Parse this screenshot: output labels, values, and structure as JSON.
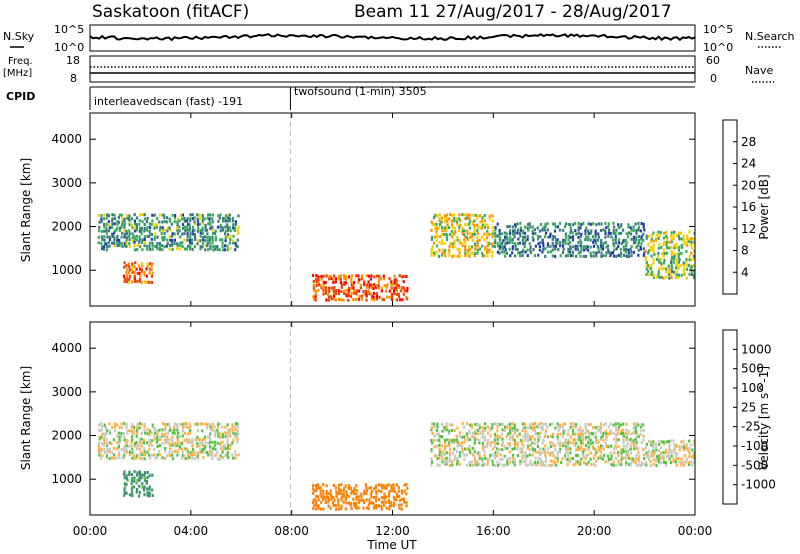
{
  "header": {
    "title": "Saskatoon (fitACF)",
    "beam_info": "Beam 11 27/Aug/2017 - 28/Aug/2017"
  },
  "top_panels": {
    "nsky_label": "N.Sky",
    "nsky_ticks": [
      "10^5",
      "10^0"
    ],
    "nsearch_label": "N.Search",
    "nsearch_ticks": [
      "10^5",
      "10^0"
    ],
    "freq_label": "Freq.",
    "freq_unit": "[MHz]",
    "freq_ticks": [
      "18",
      "8"
    ],
    "nave_label": "Nave",
    "nave_ticks": [
      "60",
      "0"
    ],
    "cpid_label": "CPID",
    "cpid_segments": [
      {
        "label": "interleavedscan (fast) -191",
        "start_hour": 0,
        "end_hour": 7.95
      },
      {
        "label": "twofsound (1-min) 3505",
        "start_hour": 7.95,
        "end_hour": 24
      }
    ]
  },
  "chart_data": [
    {
      "type": "heatmap",
      "title": "",
      "xlabel": "Time UT",
      "ylabel": "Slant Range [km]",
      "xlim": [
        0,
        24
      ],
      "ylim": [
        180,
        4600
      ],
      "x_ticks": [
        "00:00",
        "04:00",
        "08:00",
        "12:00",
        "16:00",
        "20:00",
        "00:00"
      ],
      "y_ticks": [
        "1000",
        "2000",
        "3000",
        "4000"
      ],
      "colorbar": {
        "label": "Power [dB]",
        "ticks": [
          "28",
          "24",
          "20",
          "16",
          "12",
          "8",
          "4"
        ],
        "colors": [
          "#0000ff",
          "#1f3f9f",
          "#3a7a7a",
          "#38a85a",
          "#f0d000",
          "#ff9000",
          "#f04000",
          "#ff0000"
        ]
      },
      "regions": [
        {
          "t0": 0.3,
          "t1": 5.9,
          "r0": 1450,
          "r1": 2300,
          "value": 12
        },
        {
          "t0": 1.3,
          "t1": 2.5,
          "r0": 700,
          "r1": 1200,
          "value": 24
        },
        {
          "t0": 8.8,
          "t1": 12.6,
          "r0": 300,
          "r1": 900,
          "value": 26
        },
        {
          "t0": 13.5,
          "t1": 16.0,
          "r0": 1300,
          "r1": 2300,
          "value": 18
        },
        {
          "t0": 16.0,
          "t1": 22.0,
          "r0": 1300,
          "r1": 2100,
          "value": 10
        },
        {
          "t0": 22.0,
          "t1": 24.0,
          "r0": 800,
          "r1": 1900,
          "value": 16
        }
      ]
    },
    {
      "type": "heatmap",
      "title": "",
      "xlabel": "Time UT",
      "ylabel": "Slant Range [km]",
      "xlim": [
        0,
        24
      ],
      "ylim": [
        180,
        4600
      ],
      "x_ticks": [
        "00:00",
        "04:00",
        "08:00",
        "12:00",
        "16:00",
        "20:00",
        "00:00"
      ],
      "y_ticks": [
        "1000",
        "2000",
        "3000",
        "4000"
      ],
      "colorbar": {
        "label": "Velocity [m s^-1]",
        "ticks": [
          "1000",
          "500",
          "100",
          "25",
          "-25",
          "-100",
          "-500",
          "-1000"
        ],
        "colors": [
          "#2a3fb5",
          "#2a62b0",
          "#3a8f6a",
          "#52c040",
          "#c8c8c0",
          "#ffb040",
          "#ff8000",
          "#ff4000",
          "#ff0000"
        ]
      },
      "regions": [
        {
          "t0": 0.3,
          "t1": 5.9,
          "r0": 1450,
          "r1": 2300,
          "value": 0
        },
        {
          "t0": 1.3,
          "t1": 2.5,
          "r0": 600,
          "r1": 1200,
          "value": 150
        },
        {
          "t0": 8.8,
          "t1": 12.6,
          "r0": 300,
          "r1": 900,
          "value": -300
        },
        {
          "t0": 13.5,
          "t1": 22.0,
          "r0": 1300,
          "r1": 2300,
          "value": 0
        },
        {
          "t0": 22.0,
          "t1": 24.0,
          "r0": 1300,
          "r1": 1900,
          "value": 0
        }
      ]
    }
  ]
}
